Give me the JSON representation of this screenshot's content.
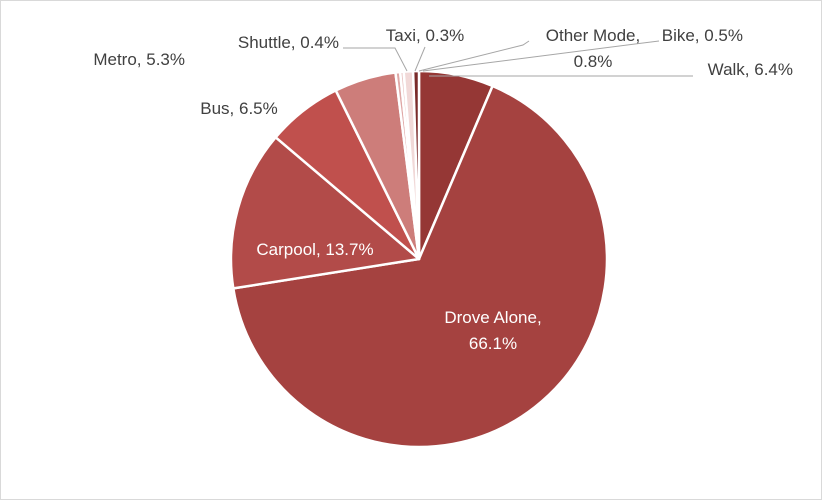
{
  "chart_data": {
    "type": "pie",
    "title": "",
    "colors": {
      "Walk": "#953735",
      "Drove Alone": "#a54240",
      "Carpool": "#b24b49",
      "Bus": "#c0504d",
      "Metro": "#cd7d7a",
      "Shuttle": "#dfa8a6",
      "Taxi": "#e9c4c3",
      "Other Mode": "#f1d9d8",
      "Bike": "#7a2b2a",
      "border": "#ffffff",
      "leader_line": "#a6a6a6"
    },
    "slices": [
      {
        "category": "Walk",
        "value": 6.4,
        "label": "Walk, 6.4%"
      },
      {
        "category": "Drove Alone",
        "value": 66.1,
        "label": "Drove Alone,",
        "label_line2": "66.1%"
      },
      {
        "category": "Carpool",
        "value": 13.7,
        "label": "Carpool, 13.7%"
      },
      {
        "category": "Bus",
        "value": 6.5,
        "label": "Bus, 6.5%"
      },
      {
        "category": "Metro",
        "value": 5.3,
        "label": "Metro, 5.3%"
      },
      {
        "category": "Shuttle",
        "value": 0.4,
        "label": "Shuttle, 0.4%"
      },
      {
        "category": "Taxi",
        "value": 0.3,
        "label": "Taxi, 0.3%"
      },
      {
        "category": "Other Mode",
        "value": 0.8,
        "label": "Other Mode,",
        "label_line2": "0.8%"
      },
      {
        "category": "Bike",
        "value": 0.5,
        "label": "Bike, 0.5%"
      }
    ]
  }
}
